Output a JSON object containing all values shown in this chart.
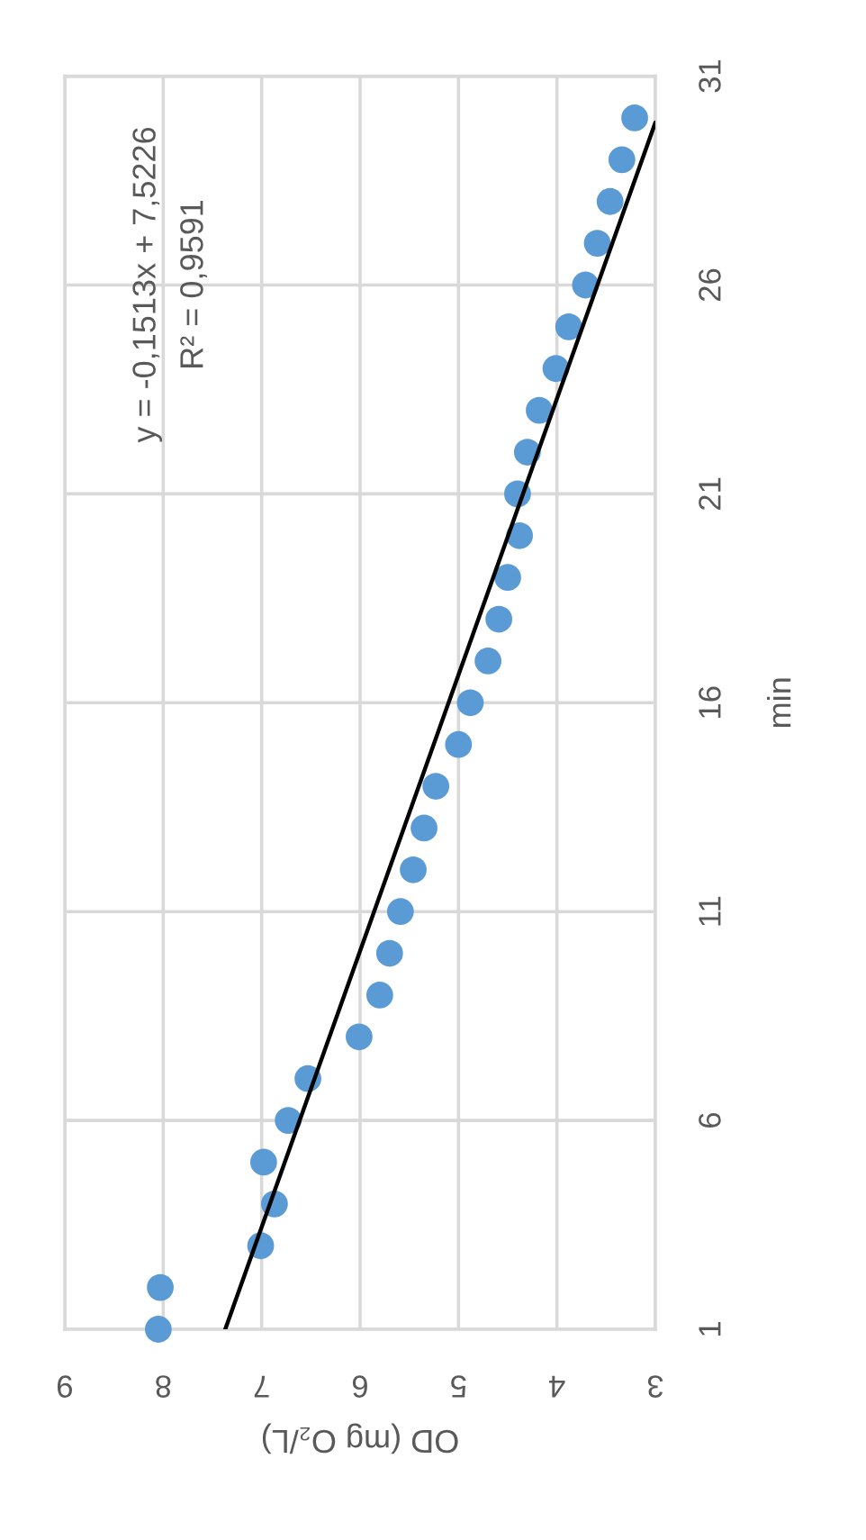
{
  "chart_data": {
    "type": "scatter",
    "xlabel": "OD (mg O₂/L)",
    "ylabel": "min",
    "annotations": [
      "y = -0,1513x + 7,5226",
      "R² = 0,9591"
    ],
    "xlim": [
      9,
      3
    ],
    "xticks": [
      9,
      8,
      7,
      6,
      5,
      4,
      3
    ],
    "ylim": [
      1,
      31
    ],
    "yticks": [
      1,
      6,
      11,
      16,
      21,
      26,
      31
    ],
    "grid": true,
    "marker": "circle",
    "series": [
      {
        "color": "#5b9bd5",
        "x": [
          8.05,
          8.03,
          7.01,
          6.87,
          6.98,
          6.73,
          6.53,
          6.01,
          5.8,
          5.7,
          5.59,
          5.46,
          5.35,
          5.23,
          5.0,
          4.88,
          4.7,
          4.59,
          4.5,
          4.38,
          4.4,
          4.3,
          4.18,
          4.01,
          3.88,
          3.71,
          3.59,
          3.46,
          3.34,
          3.21
        ],
        "values": [
          1,
          2,
          3,
          4,
          5,
          6,
          7,
          8,
          9,
          10,
          11,
          12,
          13,
          14,
          15,
          16,
          17,
          18,
          19,
          20,
          21,
          22,
          23,
          24,
          25,
          26,
          27,
          28,
          29,
          30
        ]
      },
      {
        "type": "line",
        "color": "#000000",
        "marker": "none",
        "line_style": "solid",
        "x": [
          7.37,
          3.0
        ],
        "values": [
          1,
          29.89
        ]
      }
    ]
  }
}
